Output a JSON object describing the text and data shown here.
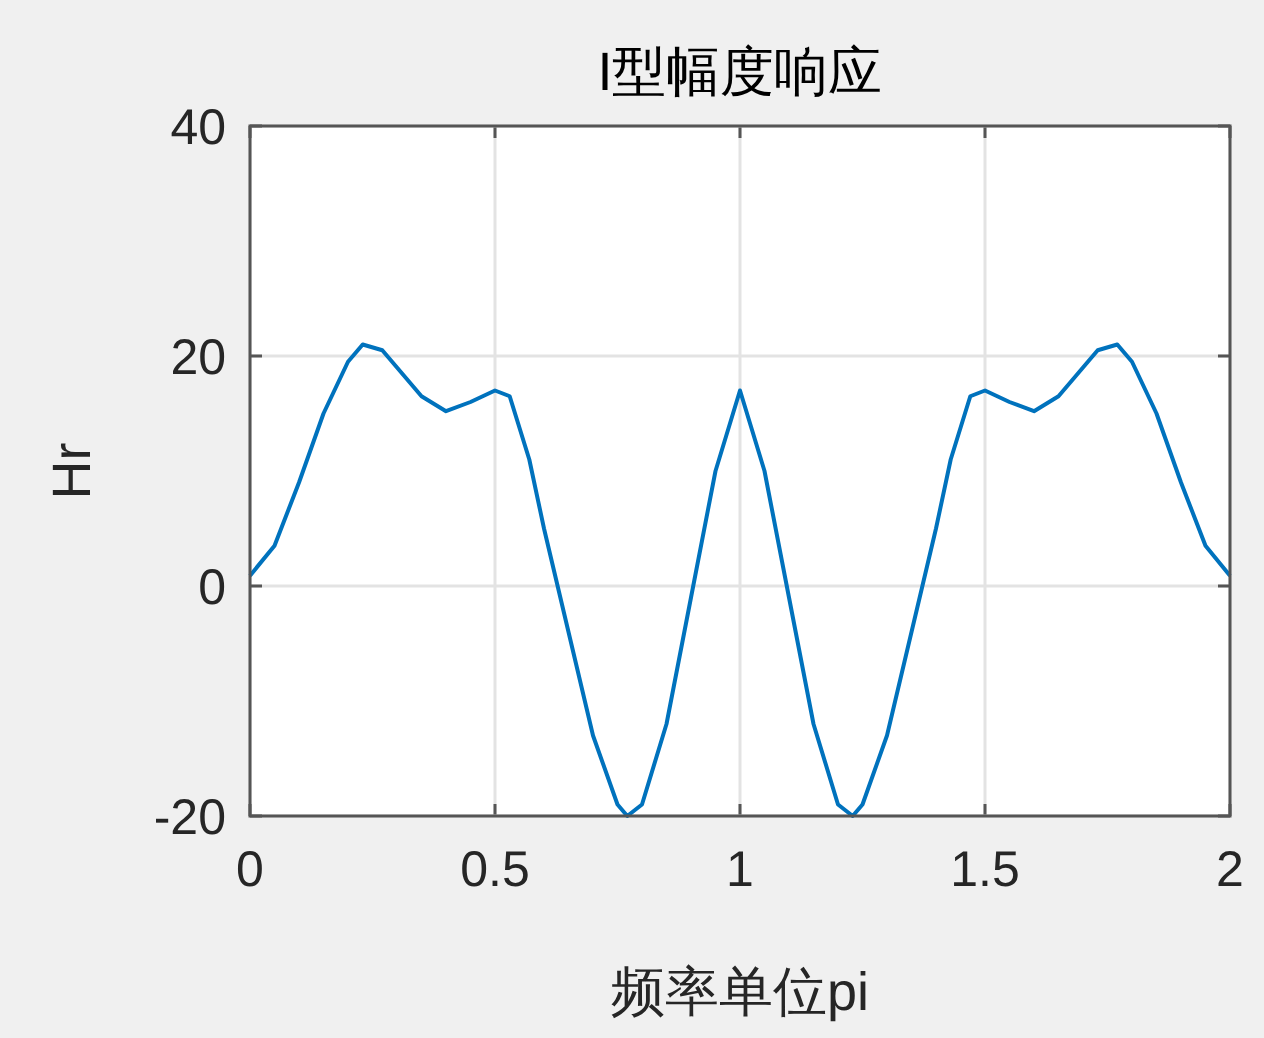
{
  "chart_data": {
    "type": "line",
    "title": "I型幅度响应",
    "xlabel": "频率单位pi",
    "ylabel": "Hr",
    "xlim": [
      0,
      2
    ],
    "ylim": [
      -20,
      40
    ],
    "xticks": [
      0,
      0.5,
      1,
      1.5,
      2
    ],
    "yticks": [
      -20,
      0,
      20,
      40
    ],
    "grid": true,
    "series": [
      {
        "color": "#0072bd",
        "x": [
          0,
          0.05,
          0.1,
          0.15,
          0.2,
          0.23,
          0.27,
          0.3,
          0.35,
          0.4,
          0.45,
          0.5,
          0.53,
          0.57,
          0.6,
          0.65,
          0.7,
          0.75,
          0.77,
          0.8,
          0.85,
          0.9,
          0.95,
          1,
          1.05,
          1.1,
          1.15,
          1.2,
          1.23,
          1.25,
          1.3,
          1.35,
          1.4,
          1.43,
          1.47,
          1.5,
          1.55,
          1.6,
          1.65,
          1.7,
          1.73,
          1.77,
          1.8,
          1.85,
          1.9,
          1.95,
          2
        ],
        "values": [
          0.9,
          3.5,
          9,
          15,
          19.5,
          21,
          20.5,
          19,
          16.5,
          15.2,
          16,
          17,
          16.5,
          11,
          5,
          -4,
          -13,
          -19,
          -20,
          -19,
          -12,
          -1,
          10,
          17,
          10,
          -1,
          -12,
          -19,
          -20,
          -19,
          -13,
          -4,
          5,
          11,
          16.5,
          17,
          16,
          15.2,
          16.5,
          19,
          20.5,
          21,
          19.5,
          15,
          9,
          3.5,
          0.9
        ]
      }
    ]
  }
}
